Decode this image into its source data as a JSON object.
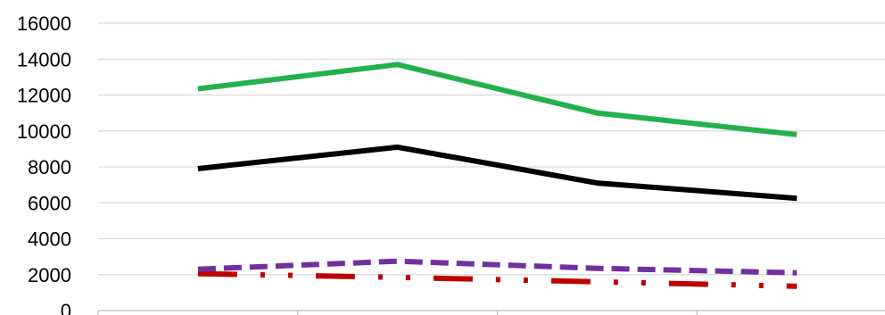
{
  "chart_data": {
    "type": "line",
    "title": "",
    "xlabel": "",
    "ylabel": "",
    "ylim": [
      0,
      16000
    ],
    "yticks": [
      "0",
      "2000",
      "4000",
      "6000",
      "8000",
      "10000",
      "12000",
      "14000",
      "16000"
    ],
    "grid": true,
    "legend": "none",
    "categories": [
      "",
      "",
      "",
      ""
    ],
    "series": [
      {
        "color": "#22b14c",
        "style": "solid",
        "values": [
          12350,
          13700,
          11000,
          9800
        ]
      },
      {
        "color": "#000000",
        "style": "solid",
        "values": [
          7900,
          9100,
          7100,
          6250
        ]
      },
      {
        "color": "#7030a0",
        "style": "dashed",
        "values": [
          2300,
          2750,
          2350,
          2100
        ]
      },
      {
        "color": "#c00000",
        "style": "dash-dot",
        "values": [
          2050,
          1850,
          1600,
          1350
        ]
      }
    ]
  }
}
